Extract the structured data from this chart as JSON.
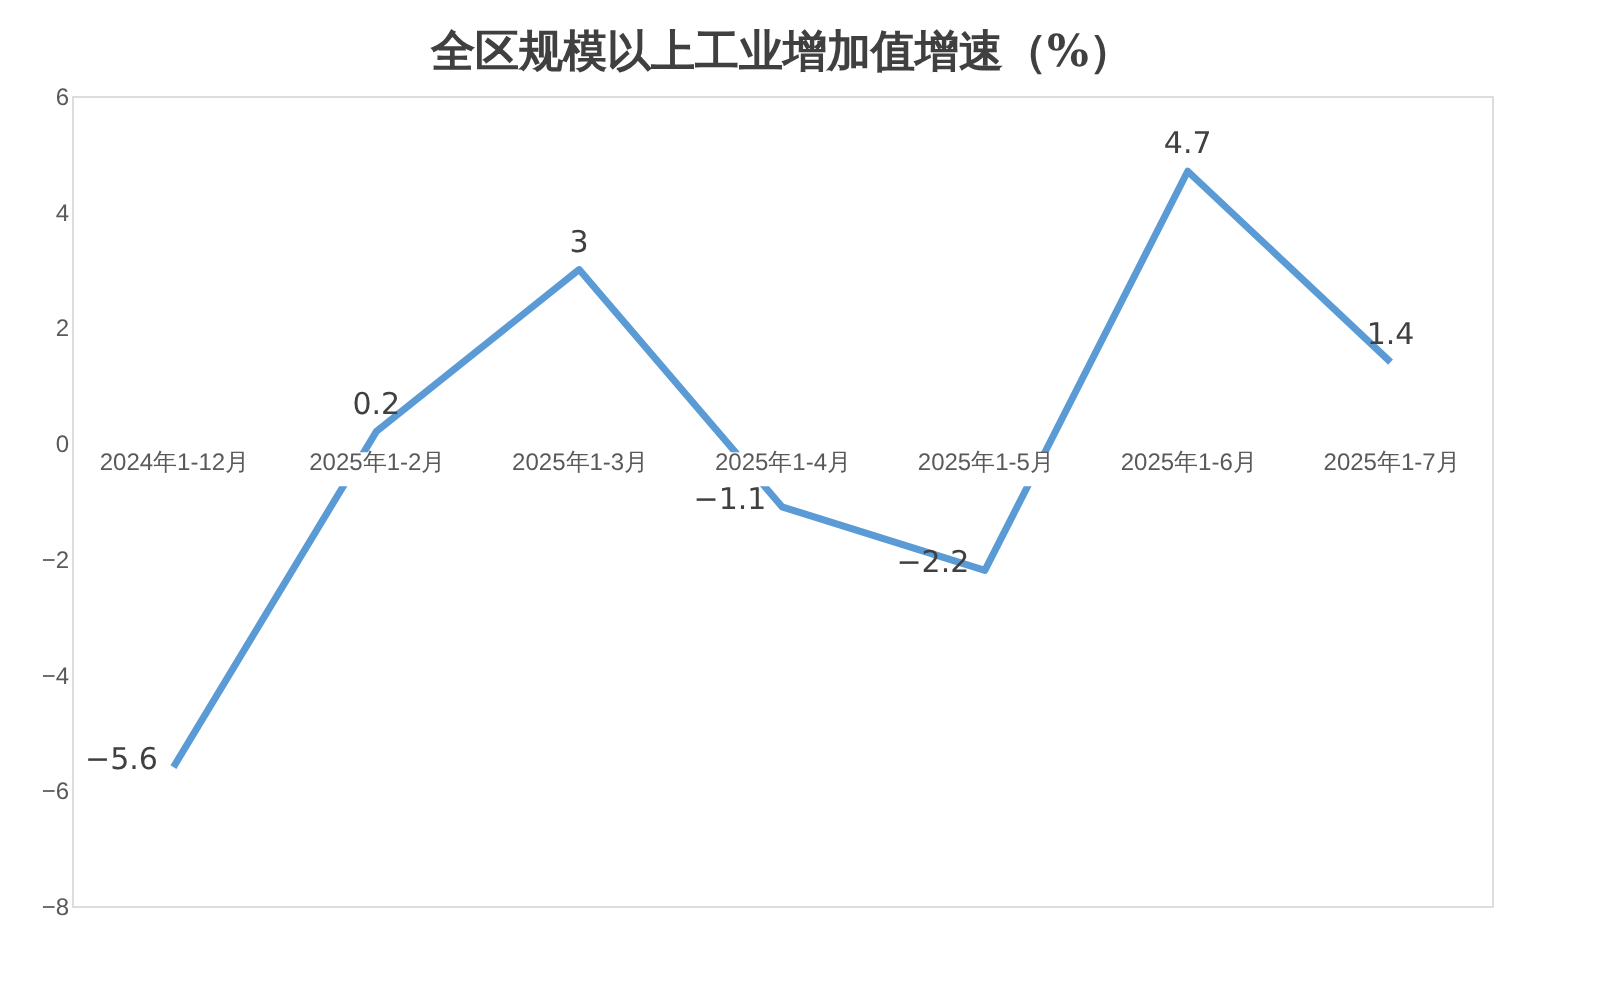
{
  "chart_data": {
    "type": "line",
    "title": "全区规模以上工业增加值增速（%）",
    "categories": [
      "2024年1-12月",
      "2025年1-2月",
      "2025年1-3月",
      "2025年1-4月",
      "2025年1-5月",
      "2025年1-6月",
      "2025年1-7月"
    ],
    "series": [
      {
        "color": "#5b9bd5",
        "values": [
          -5.6,
          0.2,
          3,
          -1.1,
          -2.2,
          4.7,
          1.4
        ]
      }
    ],
    "ylim": [
      -8,
      6
    ],
    "yticks": [
      -8,
      -6,
      -4,
      -2,
      0,
      2,
      4,
      6
    ],
    "data_labels": true,
    "grid": false,
    "legend": false,
    "marker": "none",
    "line_style": "solid"
  }
}
